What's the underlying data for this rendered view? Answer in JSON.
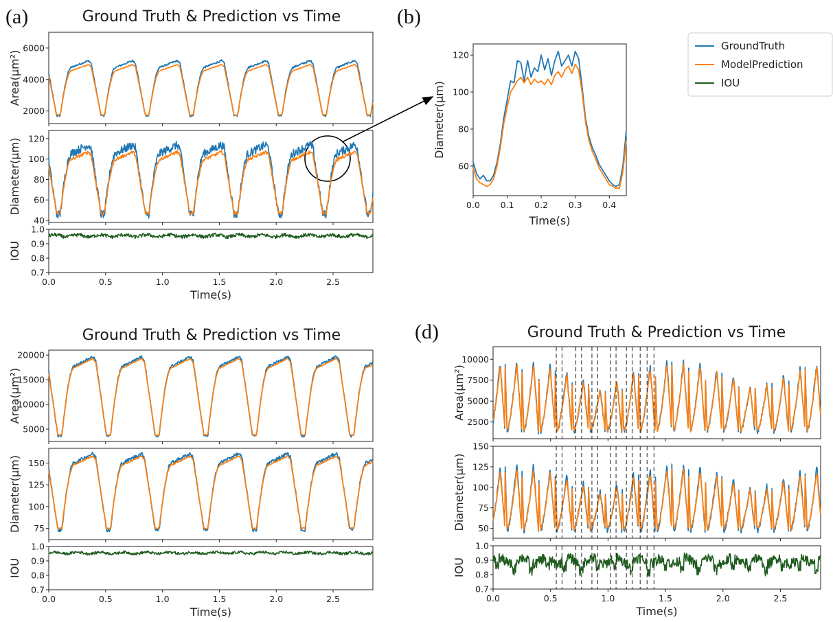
{
  "legend": {
    "items": [
      {
        "label": "GroundTruth",
        "color": "#1f77b4"
      },
      {
        "label": "ModelPrediction",
        "color": "#ff7f0e"
      },
      {
        "label": "IOU",
        "color": "#1e5c1e"
      }
    ]
  },
  "colors": {
    "ground_truth": "#1f77b4",
    "prediction": "#ff7f0e",
    "iou": "#1e5c1e",
    "zoom_marker": "#000000"
  },
  "chart_data": [
    {
      "id": "a",
      "panel_label": "(a)",
      "title": "Ground Truth & Prediction vs Time",
      "type": "line",
      "xlabel": "Time(s)",
      "xlim": [
        0,
        2.85
      ],
      "xticks": [
        "0.0",
        "0.5",
        "1.0",
        "1.5",
        "2.0",
        "2.5"
      ],
      "cycle_period_s": 0.39,
      "subplots": [
        {
          "ylabel": "Area(μm²)",
          "ylim": [
            1200,
            7000
          ],
          "yticks": [
            "2000",
            "4000",
            "6000"
          ],
          "series": [
            {
              "name": "GroundTruth",
              "min": 1700,
              "max": 5200,
              "noise": 60
            },
            {
              "name": "ModelPrediction",
              "min": 1750,
              "max": 4950,
              "noise": 20
            }
          ]
        },
        {
          "ylabel": "Diameter(μm)",
          "ylim": [
            38,
            128
          ],
          "yticks": [
            "40",
            "60",
            "80",
            "100",
            "120"
          ],
          "series": [
            {
              "name": "GroundTruth",
              "min": 46,
              "max": 114,
              "noise": 4
            },
            {
              "name": "ModelPrediction",
              "min": 47,
              "max": 107,
              "noise": 1.5
            }
          ]
        },
        {
          "ylabel": "IOU",
          "ylim": [
            0.7,
            1.0
          ],
          "yticks": [
            "0.7",
            "0.8",
            "0.9",
            "1.0"
          ],
          "series": [
            {
              "name": "IOU",
              "mean": 0.955,
              "noise": 0.012
            }
          ]
        }
      ]
    },
    {
      "id": "b",
      "panel_label": "(b)",
      "type": "line",
      "xlabel": "Time(s)",
      "ylabel": "Diameter(μm)",
      "xlim": [
        0,
        0.45
      ],
      "ylim": [
        44,
        126
      ],
      "xticks": [
        "0.0",
        "0.1",
        "0.2",
        "0.3",
        "0.4"
      ],
      "yticks": [
        "60",
        "80",
        "100",
        "120"
      ],
      "series": [
        {
          "name": "GroundTruth",
          "x": [
            0,
            0.01,
            0.02,
            0.03,
            0.04,
            0.05,
            0.06,
            0.07,
            0.08,
            0.09,
            0.1,
            0.11,
            0.12,
            0.13,
            0.14,
            0.15,
            0.16,
            0.17,
            0.18,
            0.19,
            0.2,
            0.21,
            0.22,
            0.23,
            0.24,
            0.25,
            0.26,
            0.27,
            0.28,
            0.29,
            0.3,
            0.31,
            0.32,
            0.33,
            0.34,
            0.35,
            0.36,
            0.37,
            0.38,
            0.39,
            0.4,
            0.41,
            0.42,
            0.43,
            0.44,
            0.45
          ],
          "y": [
            62,
            56,
            53,
            55,
            52,
            52,
            55,
            62,
            72,
            86,
            96,
            106,
            105,
            117,
            116,
            106,
            117,
            108,
            113,
            111,
            120,
            112,
            118,
            109,
            117,
            122,
            114,
            117,
            120,
            114,
            122,
            118,
            103,
            86,
            76,
            70,
            66,
            61,
            58,
            55,
            52,
            50,
            49,
            50,
            60,
            79
          ]
        },
        {
          "name": "ModelPrediction",
          "x": [
            0,
            0.01,
            0.02,
            0.03,
            0.04,
            0.05,
            0.06,
            0.07,
            0.08,
            0.09,
            0.1,
            0.11,
            0.12,
            0.13,
            0.14,
            0.15,
            0.16,
            0.17,
            0.18,
            0.19,
            0.2,
            0.21,
            0.22,
            0.23,
            0.24,
            0.25,
            0.26,
            0.27,
            0.28,
            0.29,
            0.3,
            0.31,
            0.32,
            0.33,
            0.34,
            0.35,
            0.36,
            0.37,
            0.38,
            0.39,
            0.4,
            0.41,
            0.42,
            0.43,
            0.44,
            0.45
          ],
          "y": [
            59,
            53,
            51,
            50,
            49,
            50,
            53,
            60,
            70,
            83,
            92,
            100,
            103,
            106,
            108,
            105,
            108,
            104,
            107,
            105,
            106,
            104,
            107,
            104,
            109,
            111,
            108,
            112,
            114,
            110,
            115,
            112,
            100,
            84,
            74,
            68,
            64,
            59,
            56,
            53,
            50,
            49,
            48,
            48,
            57,
            74
          ]
        }
      ]
    },
    {
      "id": "c",
      "title": "Ground Truth & Prediction vs Time",
      "type": "line",
      "xlabel": "Time(s)",
      "xlim": [
        0,
        2.85
      ],
      "xticks": [
        "0.0",
        "0.5",
        "1.0",
        "1.5",
        "2.0",
        "2.5"
      ],
      "cycle_period_s": 0.428,
      "subplots": [
        {
          "ylabel": "Area(μm²)",
          "ylim": [
            2500,
            21000
          ],
          "yticks": [
            "5000",
            "10000",
            "15000",
            "20000"
          ],
          "series": [
            {
              "name": "GroundTruth",
              "min": 3600,
              "max": 19700,
              "noise": 250
            },
            {
              "name": "ModelPrediction",
              "min": 3800,
              "max": 19300,
              "noise": 80
            }
          ]
        },
        {
          "ylabel": "Diameter(μm)",
          "ylim": [
            62,
            167
          ],
          "yticks": [
            "75",
            "100",
            "125",
            "150"
          ],
          "series": [
            {
              "name": "GroundTruth",
              "min": 73,
              "max": 161,
              "noise": 2
            },
            {
              "name": "ModelPrediction",
              "min": 75,
              "max": 158,
              "noise": 0.8
            }
          ]
        },
        {
          "ylabel": "IOU",
          "ylim": [
            0.7,
            1.0
          ],
          "yticks": [
            "0.7",
            "0.8",
            "0.9",
            "1.0"
          ],
          "series": [
            {
              "name": "IOU",
              "mean": 0.955,
              "noise": 0.009
            }
          ]
        }
      ]
    },
    {
      "id": "d",
      "panel_label": "(d)",
      "title": "Ground Truth & Prediction vs Time",
      "type": "line",
      "xlabel": "Time(s)",
      "xlim": [
        0,
        2.85
      ],
      "xticks": [
        "0.0",
        "0.5",
        "1.0",
        "1.5",
        "2.0",
        "2.5"
      ],
      "cycle_period_s": 0.145,
      "reference_lines_x": [
        0.55,
        0.6,
        0.72,
        0.77,
        0.86,
        0.91,
        1.02,
        1.07,
        1.16,
        1.21,
        1.28,
        1.34,
        1.4
      ],
      "subplots": [
        {
          "ylabel": "Area(μm²)",
          "ylim": [
            500,
            11500
          ],
          "yticks": [
            "2500",
            "5000",
            "7500",
            "10000"
          ],
          "series": [
            {
              "name": "GroundTruth",
              "min": 1300,
              "max": 9800,
              "noise": 300
            },
            {
              "name": "ModelPrediction",
              "min": 1400,
              "max": 9500,
              "noise": 150
            }
          ]
        },
        {
          "ylabel": "Diameter(μm)",
          "ylim": [
            38,
            150
          ],
          "yticks": [
            "50",
            "75",
            "100",
            "125",
            "150"
          ],
          "series": [
            {
              "name": "GroundTruth",
              "min": 46,
              "max": 128,
              "noise": 3
            },
            {
              "name": "ModelPrediction",
              "min": 49,
              "max": 122,
              "noise": 2
            }
          ]
        },
        {
          "ylabel": "IOU",
          "ylim": [
            0.7,
            1.0
          ],
          "yticks": [
            "0.7",
            "0.8",
            "0.9",
            "1.0"
          ],
          "series": [
            {
              "name": "IOU",
              "mean": 0.895,
              "noise": 0.035
            }
          ]
        }
      ]
    }
  ]
}
